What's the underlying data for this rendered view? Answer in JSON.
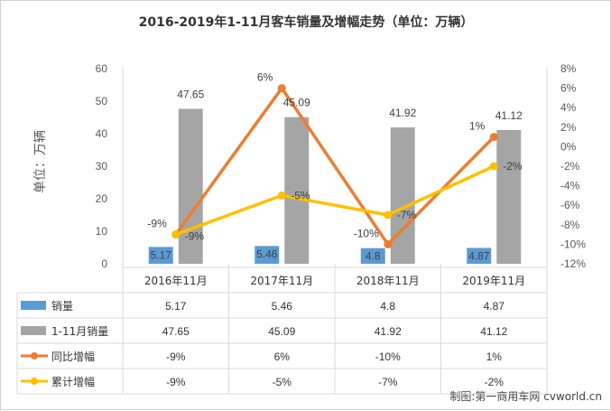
{
  "chart_data": {
    "type": "bar",
    "title": "2016-2019年1-11月客车销量及增幅走势（单位：万辆）",
    "ylabel": "单位：万辆",
    "categories": [
      "2016年11月",
      "2017年11月",
      "2018年11月",
      "2019年11月"
    ],
    "ylim": [
      0,
      60
    ],
    "y_ticks": [
      "0",
      "10",
      "20",
      "30",
      "40",
      "50",
      "60"
    ],
    "y2lim": [
      -12,
      8
    ],
    "y2_ticks": [
      "-12%",
      "-10%",
      "-8%",
      "-6%",
      "-4%",
      "-2%",
      "0%",
      "2%",
      "4%",
      "6%",
      "8%"
    ],
    "grid": false,
    "series": [
      {
        "name": "销量",
        "kind": "bar",
        "axis": "left",
        "color": "#5b9bd5",
        "values": [
          5.17,
          5.46,
          4.8,
          4.87
        ],
        "labels": [
          "5.17",
          "5.46",
          "4.8",
          "4.87"
        ]
      },
      {
        "name": "1-11月销量",
        "kind": "bar",
        "axis": "left",
        "color": "#a5a5a5",
        "values": [
          47.65,
          45.09,
          41.92,
          41.12
        ],
        "labels": [
          "47.65",
          "45.09",
          "41.92",
          "41.12"
        ]
      },
      {
        "name": "同比增幅",
        "kind": "line",
        "axis": "right",
        "color": "#ed7d31",
        "values": [
          -9,
          6,
          -10,
          1
        ],
        "labels": [
          "-9%",
          "6%",
          "-10%",
          "1%"
        ]
      },
      {
        "name": "累计增幅",
        "kind": "line",
        "axis": "right",
        "color": "#ffc000",
        "values": [
          -9,
          -5,
          -7,
          -2
        ],
        "labels": [
          "-9%",
          "-5%",
          "-7%",
          "-2%"
        ]
      }
    ],
    "table": [
      [
        "5.17",
        "5.46",
        "4.8",
        "4.87"
      ],
      [
        "47.65",
        "45.09",
        "41.92",
        "41.12"
      ],
      [
        "-9%",
        "6%",
        "-10%",
        "1%"
      ],
      [
        "-9%",
        "-5%",
        "-7%",
        "-2%"
      ]
    ],
    "credit": "制图:第一商用车网 cvworld.cn"
  }
}
